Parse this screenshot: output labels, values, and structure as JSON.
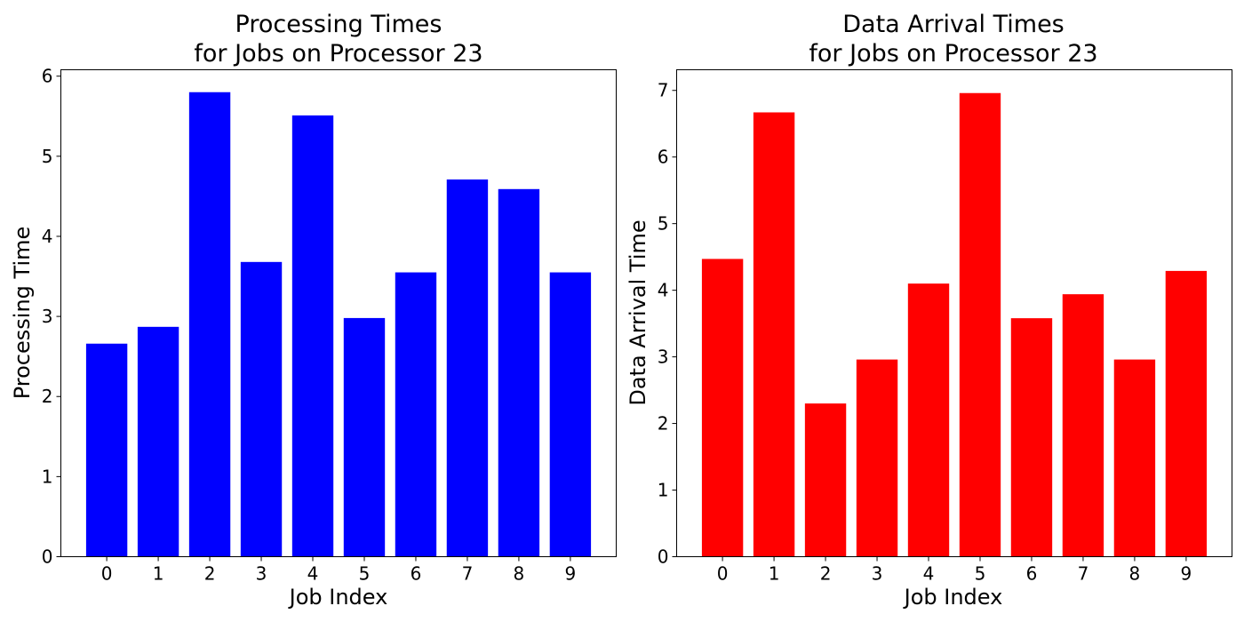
{
  "chart_data": [
    {
      "type": "bar",
      "title_line1": "Processing Times",
      "title_line2": "for Jobs on Processor 23",
      "xlabel": "Job Index",
      "ylabel": "Processing Time",
      "categories": [
        "0",
        "1",
        "2",
        "3",
        "4",
        "5",
        "6",
        "7",
        "8",
        "9"
      ],
      "values": [
        2.66,
        2.87,
        5.8,
        3.68,
        5.51,
        2.98,
        3.55,
        4.71,
        4.59,
        3.55
      ],
      "ylim": [
        0,
        6.08
      ],
      "yticks": [
        "0",
        "1",
        "2",
        "3",
        "4",
        "5",
        "6"
      ],
      "color": "#0000ff",
      "grid": false
    },
    {
      "type": "bar",
      "title_line1": "Data Arrival Times",
      "title_line2": "for Jobs on Processor 23",
      "xlabel": "Job Index",
      "ylabel": "Data Arrival Time",
      "categories": [
        "0",
        "1",
        "2",
        "3",
        "4",
        "5",
        "6",
        "7",
        "8",
        "9"
      ],
      "values": [
        4.47,
        6.67,
        2.3,
        2.96,
        4.1,
        6.96,
        3.58,
        3.94,
        2.96,
        4.29
      ],
      "ylim": [
        0,
        7.31
      ],
      "yticks": [
        "0",
        "1",
        "2",
        "3",
        "4",
        "5",
        "6",
        "7"
      ],
      "color": "#ff0000",
      "grid": false
    }
  ]
}
